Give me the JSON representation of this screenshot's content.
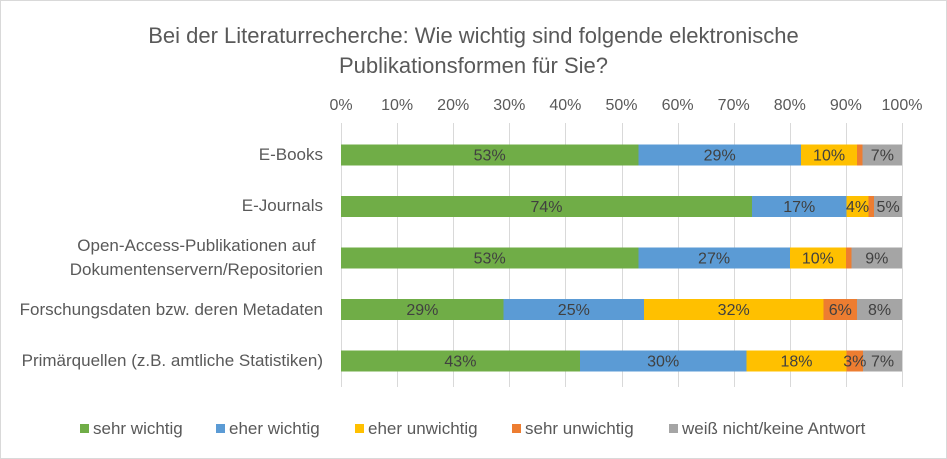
{
  "chart_data": {
    "type": "bar",
    "orientation": "horizontal",
    "stacked": "percent",
    "title": "Bei der Literaturrecherche: Wie wichtig sind folgende elektronische\nPublikationsformen für Sie?",
    "xlim": [
      0,
      100
    ],
    "x_ticks": [
      "0%",
      "10%",
      "20%",
      "30%",
      "40%",
      "50%",
      "60%",
      "70%",
      "80%",
      "90%",
      "100%"
    ],
    "categories": [
      "E-Books",
      "E-Journals",
      "Open-Access-Publikationen auf\nDokumentenservern/Repositorien",
      "Forschungsdaten bzw. deren Metadaten",
      "Primärquellen (z.B. amtliche Statistiken)"
    ],
    "series": [
      {
        "name": "sehr wichtig",
        "color": "#70AD47",
        "values": [
          53,
          74,
          53,
          29,
          43
        ],
        "labels": [
          "53%",
          "74%",
          "53%",
          "29%",
          "43%"
        ]
      },
      {
        "name": "eher wichtig",
        "color": "#5B9BD5",
        "values": [
          29,
          17,
          27,
          25,
          30
        ],
        "labels": [
          "29%",
          "17%",
          "27%",
          "25%",
          "30%"
        ]
      },
      {
        "name": "eher unwichtig",
        "color": "#FFC000",
        "values": [
          10,
          4,
          10,
          32,
          18
        ],
        "labels": [
          "10%",
          "4%",
          "10%",
          "32%",
          "18%"
        ]
      },
      {
        "name": "sehr unwichtig",
        "color": "#ED7D31",
        "values": [
          1,
          1,
          1,
          6,
          3
        ],
        "labels": [
          null,
          null,
          null,
          "6%",
          "3%"
        ]
      },
      {
        "name": "weiß nicht/keine Antwort",
        "color": "#A5A5A5",
        "values": [
          7,
          5,
          9,
          8,
          7
        ],
        "labels": [
          "7%",
          "5%",
          "9%",
          "8%",
          "7%"
        ]
      }
    ],
    "grid": true,
    "legend": "bottom"
  }
}
